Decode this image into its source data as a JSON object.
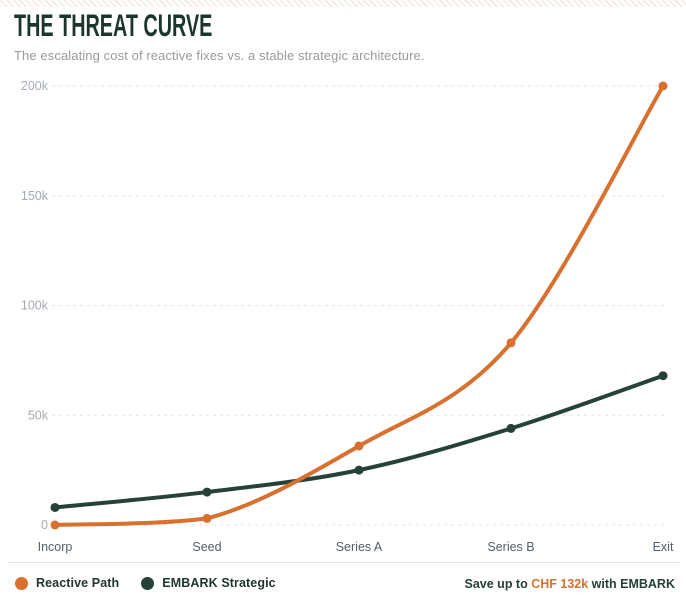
{
  "header": {
    "title": "THE THREAT CURVE",
    "subtitle": "The escalating cost of reactive fixes vs. a stable strategic architecture."
  },
  "chart_data": {
    "type": "line",
    "categories": [
      "Incorp",
      "Seed",
      "Series A",
      "Series B",
      "Exit"
    ],
    "series": [
      {
        "name": "Reactive Path",
        "color": "#D8702F",
        "values": [
          0,
          3,
          36,
          83,
          200
        ]
      },
      {
        "name": "EMBARK Strategic",
        "color": "#25413A",
        "values": [
          8,
          15,
          25,
          44,
          68
        ]
      }
    ],
    "unit": "CHF (thousands)",
    "yticks": [
      0,
      50,
      100,
      150,
      200
    ],
    "ytick_labels": [
      "0",
      "50k",
      "100k",
      "150k",
      "200k"
    ],
    "ylim": [
      0,
      200
    ],
    "grid": "horizontal-dashed",
    "legend_position": "bottom-left",
    "ytick_color": "#a6abb2",
    "xtick_color": "#535f69",
    "grid_color": "#e4e4e2"
  },
  "footer": {
    "legend": [
      {
        "label": "Reactive Path",
        "color": "#D8702F"
      },
      {
        "label": "EMBARK Strategic",
        "color": "#25413A"
      }
    ],
    "savings": {
      "prefix": "Save up to ",
      "highlight": "CHF 132k",
      "suffix": " with EMBARK",
      "highlight_color": "#D8702F",
      "text_color": "#23403a"
    }
  }
}
